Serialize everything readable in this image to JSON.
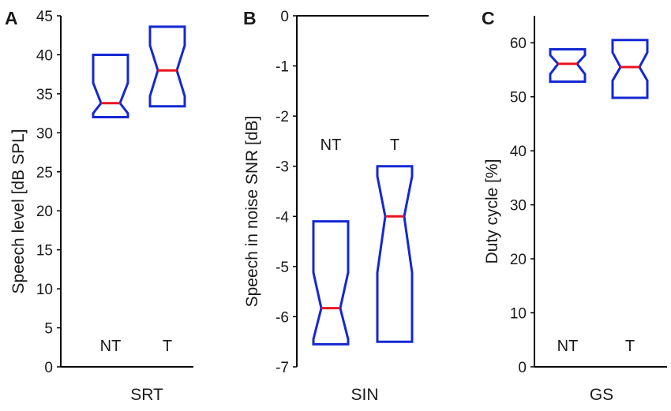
{
  "chart_data": [
    {
      "type": "box",
      "panel": "A",
      "title": "",
      "xlabel": "SRT",
      "ylabel": "Speech level [dB SPL]",
      "ylim": [
        0,
        45
      ],
      "yticks": [
        0,
        5,
        10,
        15,
        20,
        25,
        30,
        35,
        40,
        45
      ],
      "ytick_labels": [
        "0",
        "5",
        "10",
        "15",
        "20",
        "25",
        "30",
        "35",
        "40",
        "45"
      ],
      "axis_top_line": false,
      "groups": [
        {
          "name": "NT",
          "q1": 32.0,
          "notch_low": 32.5,
          "median": 33.8,
          "notch_high": 36.4,
          "q3": 40.0
        },
        {
          "name": "T",
          "q1": 33.4,
          "notch_low": 34.7,
          "median": 38.0,
          "notch_high": 41.2,
          "q3": 43.6
        }
      ]
    },
    {
      "type": "box",
      "panel": "B",
      "title": "",
      "xlabel": "SIN",
      "ylabel": "Speech in noise SNR [dB]",
      "ylim": [
        -7,
        0
      ],
      "yticks": [
        0,
        -1,
        -2,
        -3,
        -4,
        -5,
        -6,
        -7
      ],
      "ytick_labels": [
        "0",
        "-1",
        "-2",
        "-3",
        "-4",
        "-5",
        "-6",
        "-7"
      ],
      "axis_top_line": true,
      "groups": [
        {
          "name": "NT",
          "q1": -6.55,
          "notch_low": -6.45,
          "median": -5.83,
          "notch_high": -5.12,
          "q3": -4.1
        },
        {
          "name": "T",
          "q1": -6.5,
          "notch_low": -5.12,
          "median": -4.0,
          "notch_high": -3.2,
          "q3": -3.0
        }
      ]
    },
    {
      "type": "box",
      "panel": "C",
      "title": "",
      "xlabel": "GS",
      "ylabel": "Duty cycle [%]",
      "ylim": [
        0,
        65
      ],
      "yticks": [
        0,
        10,
        20,
        30,
        40,
        50,
        60
      ],
      "ytick_labels": [
        "0",
        "10",
        "20",
        "30",
        "40",
        "50",
        "60"
      ],
      "axis_top_line": false,
      "groups": [
        {
          "name": "NT",
          "q1": 52.8,
          "notch_low": 54.2,
          "median": 56.1,
          "notch_high": 57.7,
          "q3": 58.8
        },
        {
          "name": "T",
          "q1": 49.8,
          "notch_low": 53.0,
          "median": 55.5,
          "notch_high": 58.2,
          "q3": 60.5
        }
      ]
    }
  ],
  "colors": {
    "box": "#1428d2",
    "median": "#e8141e",
    "axis": "#000000"
  }
}
